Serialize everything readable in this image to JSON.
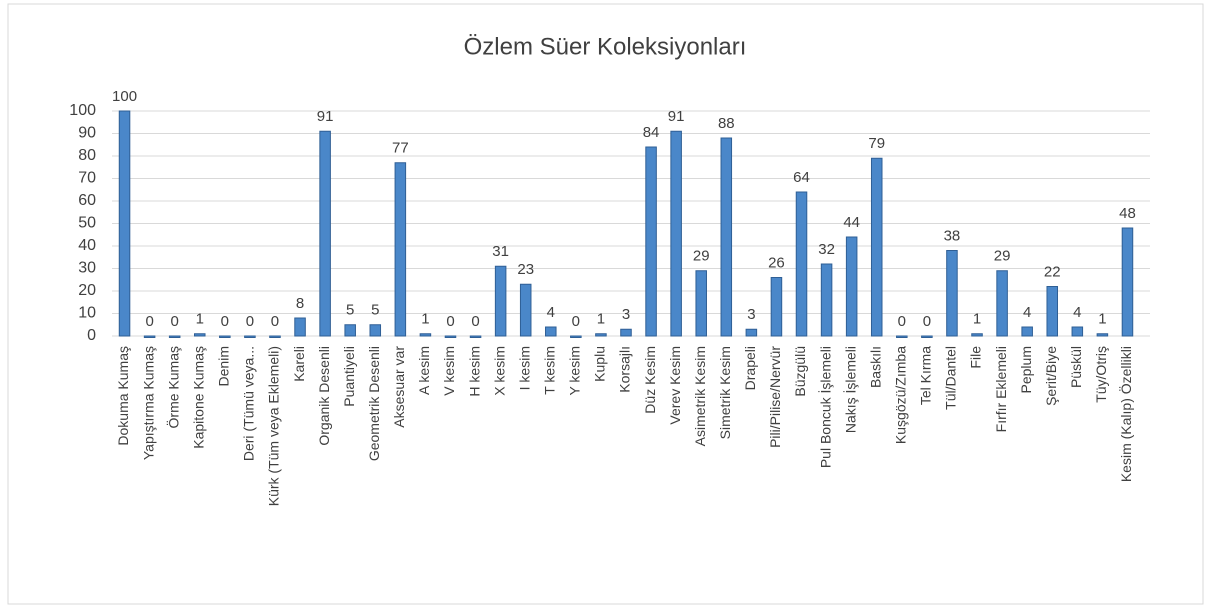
{
  "chart_data": {
    "type": "bar",
    "title": "Özlem Süer Koleksiyonları",
    "categories": [
      "Dokuma Kumaş",
      "Yapıştırma Kumaş",
      "Örme Kumaş",
      "Kapitone Kumaş",
      "Denim",
      "Deri (Tümü veya...",
      "Kürk (Tüm veya Eklemeli)",
      "Kareli",
      "Organik Desenli",
      "Puantiyeli",
      "Geometrik Desenli",
      "Aksesuar var",
      "A kesim",
      "V kesim",
      "H kesim",
      "X kesim",
      "I kesim",
      "T kesim",
      "Y kesim",
      "Kuplu",
      "Korsajlı",
      "Düz Kesim",
      "Verev Kesim",
      "Asimetrik Kesim",
      "Simetrik Kesim",
      "Drapeli",
      "Pili/Pilise/Nervür",
      "Büzgülü",
      "Pul Boncuk İşlemeli",
      "Nakış İşlemeli",
      "Baskılı",
      "Kuşgözü/Zımba",
      "Tel Kırma",
      "Tül/Dantel",
      "File",
      "Fırfır Eklemeli",
      "Peplum",
      "Şerit/Biye",
      "Püskül",
      "Tüy/Otriş",
      "Kesim (Kalıp) Özellikli"
    ],
    "values": [
      100,
      0,
      0,
      1,
      0,
      0,
      0,
      8,
      91,
      5,
      5,
      77,
      1,
      0,
      0,
      31,
      23,
      4,
      0,
      1,
      3,
      84,
      91,
      29,
      88,
      3,
      26,
      64,
      32,
      44,
      79,
      0,
      0,
      38,
      1,
      29,
      4,
      22,
      4,
      1,
      48
    ],
    "color": "#4a87c9",
    "ylim": [
      0,
      100
    ],
    "yticks": [
      0,
      10,
      20,
      30,
      40,
      50,
      60,
      70,
      80,
      90,
      100
    ],
    "grid": true
  }
}
